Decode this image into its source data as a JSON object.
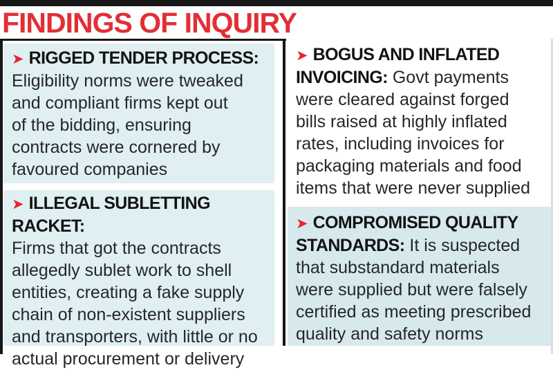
{
  "title": "FINDINGS OF INQUIRY",
  "bullet_icon": "➤",
  "colors": {
    "title-red": "#e12f36",
    "arrow-red": "#e8232d",
    "blue-left": "#e0eff1",
    "blue-right": "#d7e9ed",
    "body-ink": "#24272a"
  },
  "sections": [
    {
      "header_lines": [
        "RIGGED TENDER PROCESS:"
      ],
      "body_lines": [
        "Eligibility norms were tweaked",
        "and compliant firms kept out",
        "of the bidding, ensuring",
        "contracts were cornered by",
        "favoured companies"
      ]
    },
    {
      "header_lines": [
        "ILLEGAL SUBLETTING RACKET:"
      ],
      "body_lines": [
        "Firms that got the contracts",
        "allegedly sublet work to shell",
        "entities, creating a fake supply",
        "chain of non-existent suppliers",
        "and transporters, with little or no",
        "actual procurement or delivery"
      ]
    },
    {
      "header_lines": [
        "BOGUS AND INFLATED",
        "INVOICING:"
      ],
      "body_lines": [
        "Govt payments",
        "were cleared against forged",
        "bills raised at highly inflated",
        "rates, including invoices for",
        "packaging materials and food",
        "items that were never supplied"
      ]
    },
    {
      "header_lines": [
        "COMPROMISED QUALITY",
        "STANDARDS:"
      ],
      "body_lines": [
        "It is suspected",
        "that substandard materials",
        "were supplied but were falsely",
        "certified as meeting prescribed",
        "quality and safety norms"
      ]
    }
  ]
}
